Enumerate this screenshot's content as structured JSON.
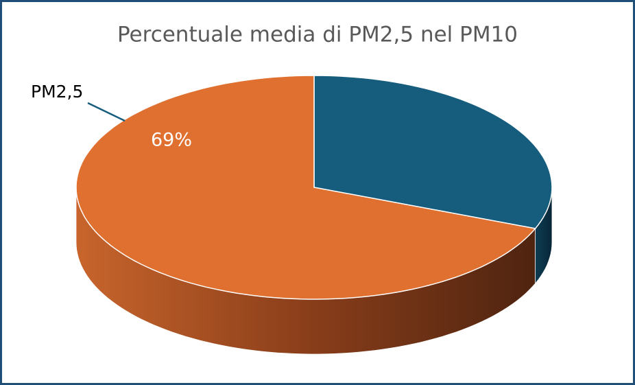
{
  "chart_data": {
    "type": "pie3d",
    "title": "Percentuale media di PM2,5 nel PM10",
    "categories": [
      null,
      "PM2,5"
    ],
    "values": [
      31,
      69
    ],
    "value_labels": [
      null,
      "69%"
    ],
    "colors": [
      "#165c7d",
      "#e07030"
    ]
  }
}
